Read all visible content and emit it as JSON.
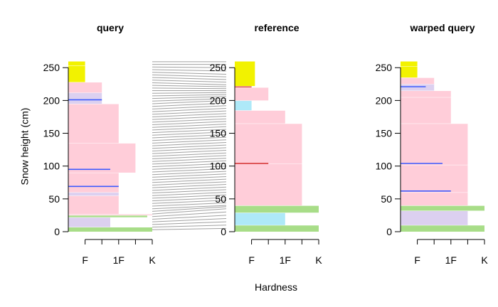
{
  "chart_data": {
    "type": "snow-profile",
    "xlabel": "Hardness",
    "ylabel": "Snow height (cm)",
    "ylim": [
      0,
      260
    ],
    "y_ticks": [
      0,
      50,
      100,
      150,
      200,
      250
    ],
    "x_ticks": [
      {
        "value": 1,
        "label": "F"
      },
      {
        "value": 2,
        "label": ""
      },
      {
        "value": 3,
        "label": "1F"
      },
      {
        "value": 4,
        "label": ""
      },
      {
        "value": 5,
        "label": "K"
      }
    ],
    "xlim": [
      0,
      5
    ],
    "colors": {
      "PP": "#f2f200",
      "DF": "#ffcdd9",
      "RG": "#ffc0cb",
      "FC": "#dcd0f0",
      "DH": "#a8dd88",
      "IF": "#aee9f8",
      "SH": "#d32f2f",
      "SHb": "#3d5afe",
      "connector": "#a0a0a0"
    },
    "panels": [
      {
        "title": "query",
        "layers": [
          {
            "bottom": 0,
            "top": 7,
            "hardness": 5,
            "type": "DH"
          },
          {
            "bottom": 7,
            "top": 22,
            "hardness": 2.5,
            "type": "FC"
          },
          {
            "bottom": 22,
            "top": 25,
            "hardness": 4.7,
            "type": "DH"
          },
          {
            "bottom": 25,
            "top": 27,
            "hardness": 5,
            "type": "DF"
          },
          {
            "bottom": 27,
            "top": 55,
            "hardness": 3,
            "type": "DF"
          },
          {
            "bottom": 55,
            "top": 60,
            "hardness": 3,
            "type": "FC"
          },
          {
            "bottom": 60,
            "top": 90,
            "hardness": 3,
            "type": "DF"
          },
          {
            "bottom": 90,
            "top": 135,
            "hardness": 4,
            "type": "DF"
          },
          {
            "bottom": 135,
            "top": 195,
            "hardness": 3,
            "type": "DF"
          },
          {
            "bottom": 195,
            "top": 212,
            "hardness": 2,
            "type": "FC"
          },
          {
            "bottom": 212,
            "top": 228,
            "hardness": 2,
            "type": "DF"
          },
          {
            "bottom": 228,
            "top": 253,
            "hardness": 1,
            "type": "PP"
          },
          {
            "bottom": 253,
            "top": 260,
            "hardness": 1,
            "type": "PP"
          }
        ],
        "lines": [
          {
            "height": 69,
            "hardness": 3,
            "type": "SHb"
          },
          {
            "height": 95,
            "hardness": 2.5,
            "type": "SHb"
          },
          {
            "height": 201,
            "hardness": 2,
            "type": "SHb"
          }
        ]
      },
      {
        "title": "reference",
        "layers": [
          {
            "bottom": 0,
            "top": 10,
            "hardness": 5,
            "type": "DH"
          },
          {
            "bottom": 10,
            "top": 29,
            "hardness": 3,
            "type": "IF"
          },
          {
            "bottom": 29,
            "top": 40,
            "hardness": 5,
            "type": "DH"
          },
          {
            "bottom": 40,
            "top": 104,
            "hardness": 4,
            "type": "DF"
          },
          {
            "bottom": 104,
            "top": 165,
            "hardness": 4,
            "type": "DF"
          },
          {
            "bottom": 165,
            "top": 185,
            "hardness": 3,
            "type": "DF"
          },
          {
            "bottom": 185,
            "top": 200,
            "hardness": 1,
            "type": "IF"
          },
          {
            "bottom": 200,
            "top": 220,
            "hardness": 2,
            "type": "DF"
          },
          {
            "bottom": 220,
            "top": 222,
            "hardness": 1,
            "type": "SH"
          },
          {
            "bottom": 222,
            "top": 260,
            "hardness": 1.2,
            "type": "PP"
          }
        ],
        "lines": [
          {
            "height": 104,
            "hardness": 2,
            "type": "SH"
          }
        ]
      },
      {
        "title": "warped query",
        "layers": [
          {
            "bottom": 0,
            "top": 10,
            "hardness": 5,
            "type": "DH"
          },
          {
            "bottom": 10,
            "top": 32,
            "hardness": 4,
            "type": "FC"
          },
          {
            "bottom": 32,
            "top": 40,
            "hardness": 5,
            "type": "DH"
          },
          {
            "bottom": 40,
            "top": 60,
            "hardness": 4,
            "type": "DF"
          },
          {
            "bottom": 60,
            "top": 102,
            "hardness": 4,
            "type": "DF"
          },
          {
            "bottom": 102,
            "top": 165,
            "hardness": 4,
            "type": "DF"
          },
          {
            "bottom": 165,
            "top": 205,
            "hardness": 3,
            "type": "DF"
          },
          {
            "bottom": 205,
            "top": 215,
            "hardness": 3,
            "type": "DF"
          },
          {
            "bottom": 215,
            "top": 225,
            "hardness": 2,
            "type": "FC"
          },
          {
            "bottom": 225,
            "top": 235,
            "hardness": 2,
            "type": "DF"
          },
          {
            "bottom": 235,
            "top": 252,
            "hardness": 1,
            "type": "PP"
          },
          {
            "bottom": 252,
            "top": 260,
            "hardness": 1,
            "type": "PP"
          }
        ],
        "lines": [
          {
            "height": 62,
            "hardness": 3,
            "type": "SHb"
          },
          {
            "height": 104,
            "hardness": 2.5,
            "type": "SHb"
          },
          {
            "height": 221,
            "hardness": 1.5,
            "type": "SHb"
          }
        ]
      }
    ],
    "alignment": {
      "query_heights": [
        3,
        7,
        11,
        15,
        19,
        23,
        27,
        31,
        35,
        39,
        43,
        47,
        51,
        55,
        59,
        63,
        67,
        71,
        75,
        79,
        83,
        87,
        91,
        95,
        99,
        103,
        107,
        111,
        115,
        119,
        123,
        127,
        131,
        135,
        139,
        143,
        147,
        151,
        155,
        159,
        163,
        167,
        171,
        175,
        179,
        183,
        187,
        191,
        195,
        199,
        203,
        207,
        211,
        215,
        219,
        223,
        227,
        231,
        235,
        239,
        243,
        247,
        251,
        255,
        259
      ],
      "reference_heights": [
        5,
        10,
        15,
        20,
        25,
        30,
        35,
        38,
        40,
        44,
        48,
        52,
        56,
        60,
        64,
        68,
        72,
        76,
        80,
        84,
        88,
        92,
        96,
        100,
        104,
        108,
        112,
        116,
        120,
        124,
        128,
        132,
        136,
        140,
        144,
        148,
        152,
        156,
        160,
        164,
        168,
        172,
        176,
        180,
        184,
        188,
        192,
        196,
        200,
        203,
        206,
        209,
        212,
        215,
        218,
        221,
        224,
        228,
        232,
        236,
        240,
        245,
        250,
        255,
        259
      ]
    }
  }
}
